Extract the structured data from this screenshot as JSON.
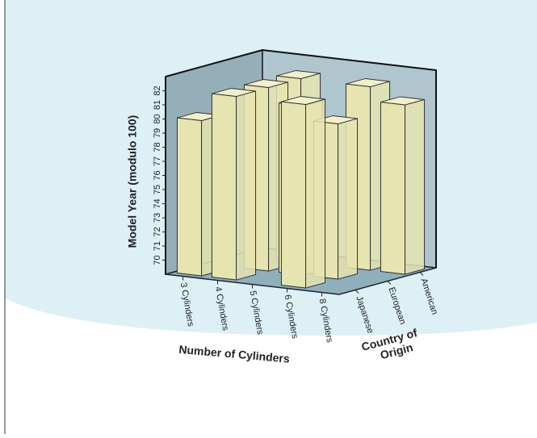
{
  "chart_data": {
    "type": "bar3d",
    "x_label": "Number of Cylinders",
    "y_label": "Model Year (modulo 100)",
    "z_label": [
      "Country of",
      "Origin"
    ],
    "categories": [
      "3 Cylinders",
      "4 Cylinders",
      "5 Cylinders",
      "6 Cylinders",
      "8 Cylinders"
    ],
    "series": [
      {
        "name": "Japanese",
        "color": "#e6e4b0",
        "values": [
          80,
          82,
          null,
          82,
          null
        ]
      },
      {
        "name": "European",
        "color": "#e6e4b0",
        "values": [
          null,
          82,
          81,
          80,
          null
        ]
      },
      {
        "name": "American",
        "color": "#e6e4b0",
        "values": [
          null,
          82,
          null,
          82,
          81
        ]
      }
    ],
    "ylim": [
      69,
      83
    ],
    "yticks": [
      70,
      71,
      72,
      73,
      74,
      75,
      76,
      77,
      78,
      79,
      80,
      81,
      82
    ]
  }
}
